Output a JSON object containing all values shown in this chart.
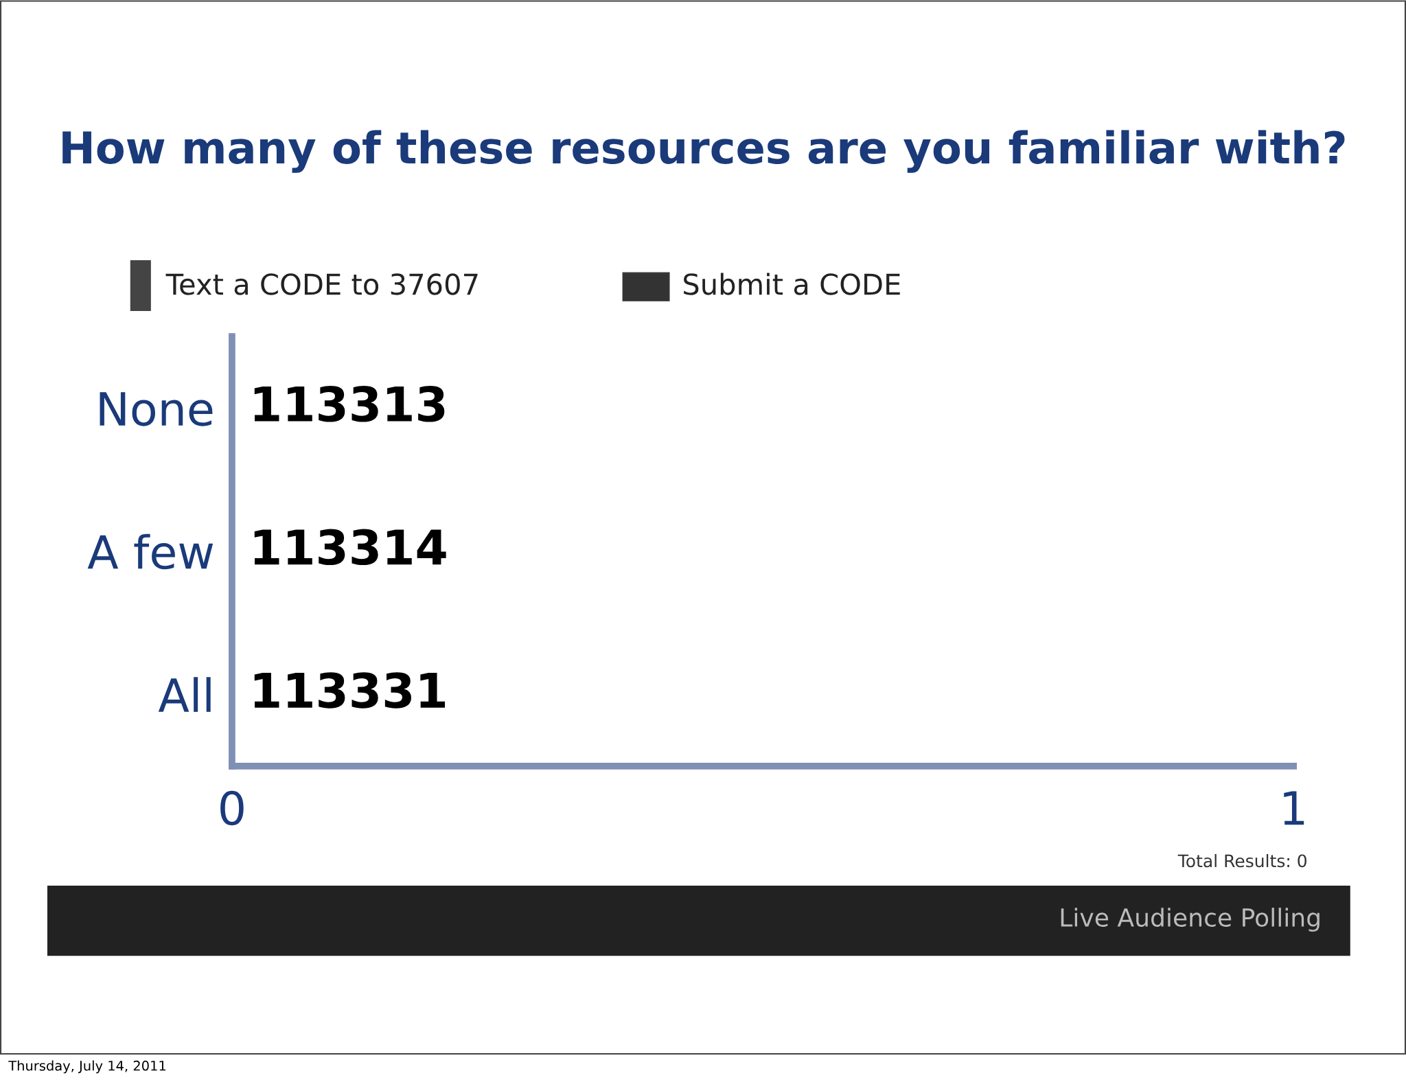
{
  "chart_data": {
    "type": "bar",
    "orientation": "horizontal",
    "title": "How many of these resources are you familiar with?",
    "categories": [
      "None",
      "A few",
      "All"
    ],
    "values": [
      0,
      0,
      0
    ],
    "color": "#7f8fb5",
    "xlim": [
      0,
      1
    ],
    "xticks": [
      0,
      1
    ],
    "grid": false,
    "legend": false,
    "annotations": [
      "113313",
      "113314",
      "113331",
      "Text a CODE to 37607",
      "Submit a CODE",
      "Total Results: 0",
      "Live Audience Polling",
      "Thursday, July 14, 2011"
    ]
  }
}
